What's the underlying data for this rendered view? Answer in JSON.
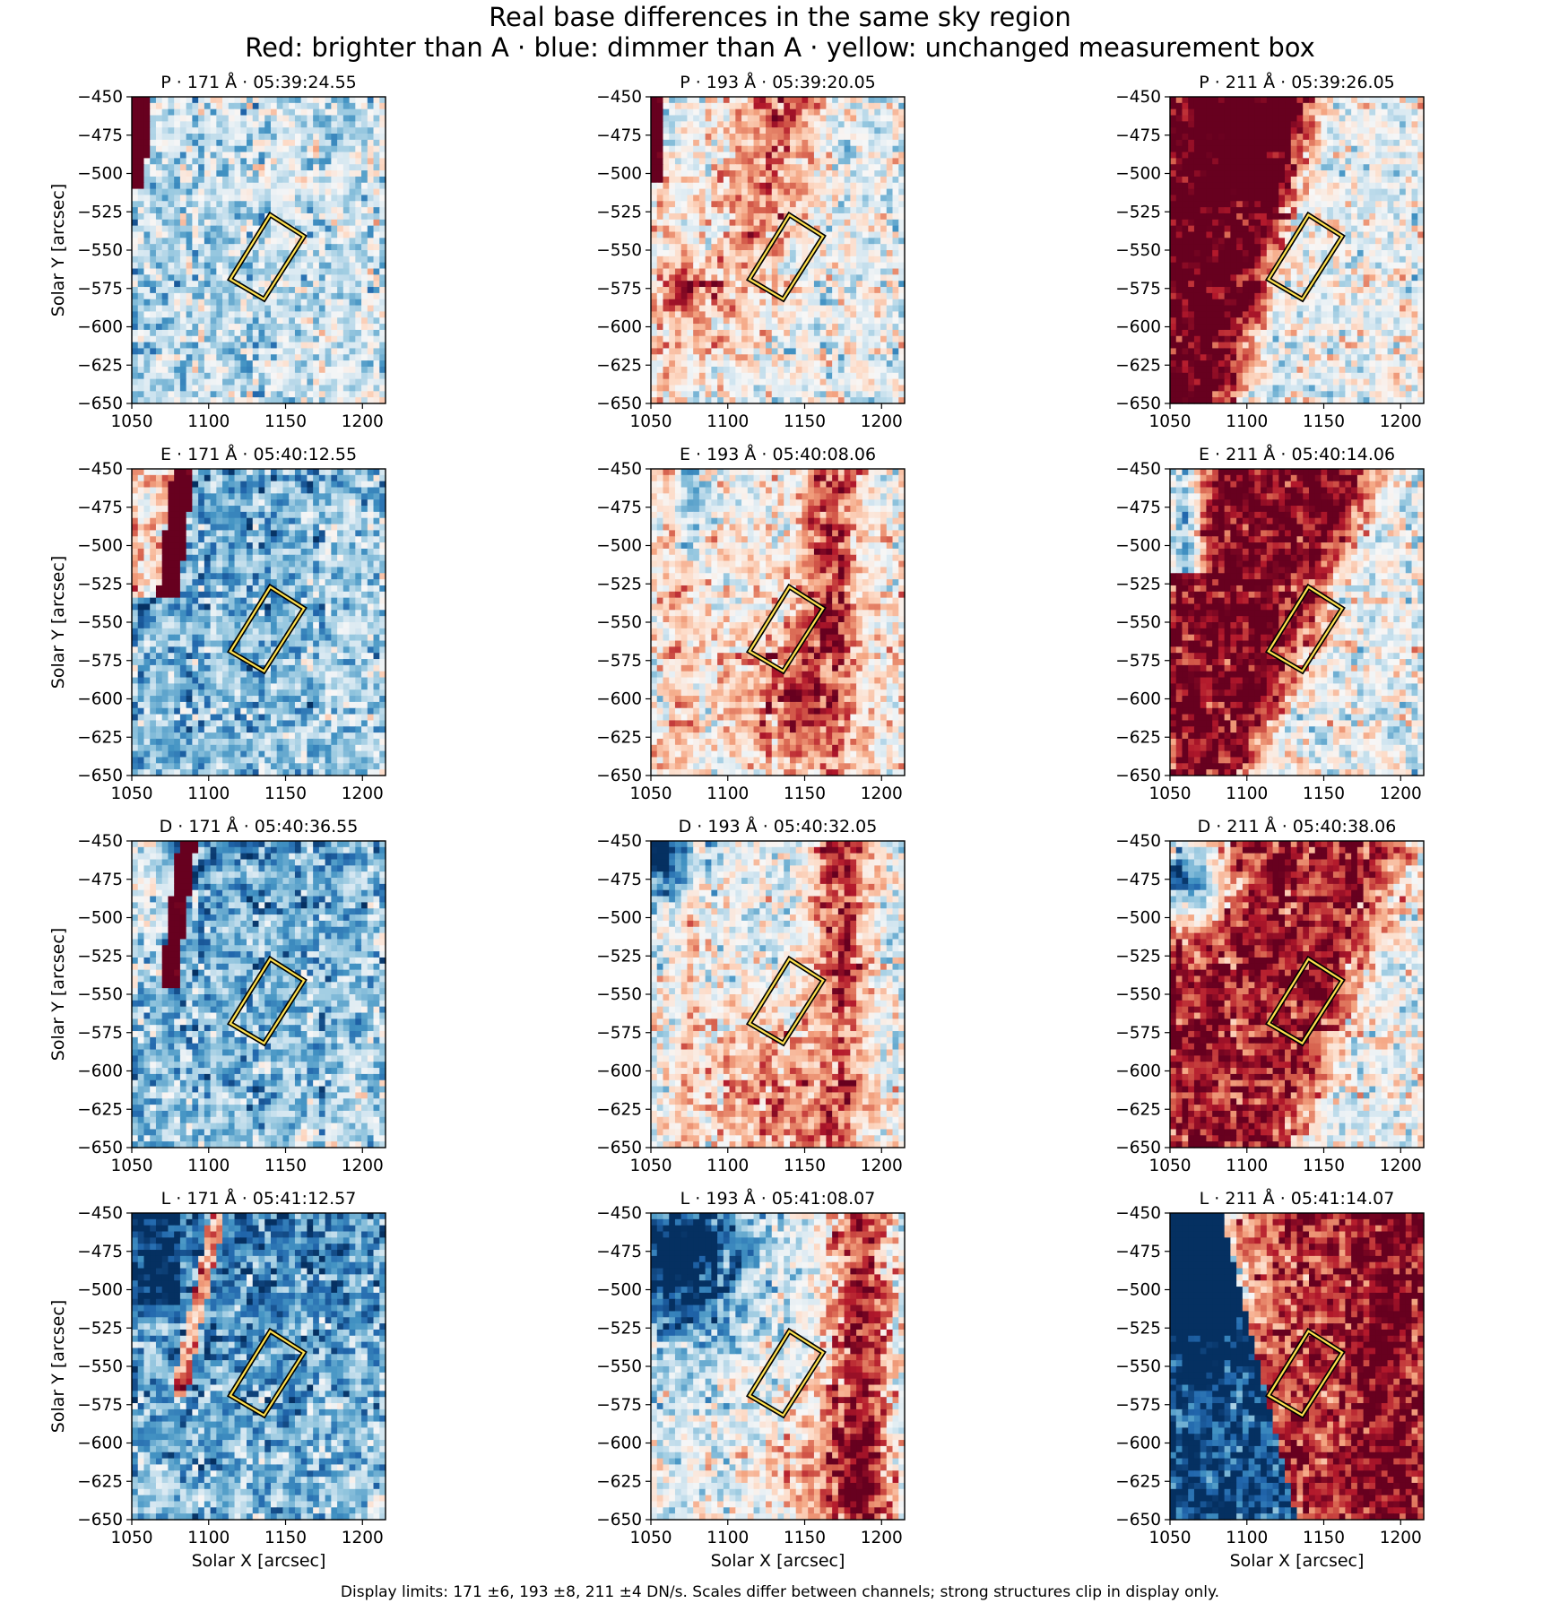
{
  "figure": {
    "title_line1": "Real base differences in the same sky region",
    "title_line2": "Red: brighter than A · blue: dimmer than A · yellow: unchanged measurement box",
    "footnote": "Display limits: 171 ±6, 193 ±8, 211 ±4 DN/s. Scales differ between channels; strong structures clip in display only."
  },
  "colors": {
    "red": "#67001f",
    "blue": "#053061",
    "box_outer": "#000000",
    "box_inner": "#ffe14d"
  },
  "chart_data": {
    "type": "heatmap",
    "colormap": "RdBu_r",
    "xlabel": "Solar X [arcsec]",
    "ylabel": "Solar Y [arcsec]",
    "xlim": [
      1050,
      1215
    ],
    "ylim": [
      -650,
      -450
    ],
    "xticks": [
      1050,
      1100,
      1150,
      1200
    ],
    "yticks": [
      -450,
      -475,
      -500,
      -525,
      -550,
      -575,
      -600,
      -625,
      -650
    ],
    "ytick_labels": [
      "−450",
      "−475",
      "−500",
      "−525",
      "−550",
      "−575",
      "−600",
      "−625",
      "−650"
    ],
    "display_limits": {
      "171": 6,
      "193": 8,
      "211": 4
    },
    "display_units": "DN/s",
    "measurement_box_corners": [
      [
        1140,
        -527
      ],
      [
        1162,
        -541
      ],
      [
        1136,
        -582
      ],
      [
        1114,
        -569
      ]
    ],
    "rows": [
      "P",
      "E",
      "D",
      "L"
    ],
    "columns": [
      "171 Å",
      "193 Å",
      "211 Å"
    ],
    "panels": [
      {
        "title": "P · 171 Å · 05:39:24.55",
        "row": 0,
        "col": 0,
        "pattern": "p171"
      },
      {
        "title": "P · 193 Å · 05:39:20.05",
        "row": 0,
        "col": 1,
        "pattern": "p193"
      },
      {
        "title": "P · 211 Å · 05:39:26.05",
        "row": 0,
        "col": 2,
        "pattern": "p211"
      },
      {
        "title": "E · 171 Å · 05:40:12.55",
        "row": 1,
        "col": 0,
        "pattern": "e171"
      },
      {
        "title": "E · 193 Å · 05:40:08.06",
        "row": 1,
        "col": 1,
        "pattern": "e193"
      },
      {
        "title": "E · 211 Å · 05:40:14.06",
        "row": 1,
        "col": 2,
        "pattern": "e211"
      },
      {
        "title": "D · 171 Å · 05:40:36.55",
        "row": 2,
        "col": 0,
        "pattern": "d171"
      },
      {
        "title": "D · 193 Å · 05:40:32.05",
        "row": 2,
        "col": 1,
        "pattern": "d193"
      },
      {
        "title": "D · 211 Å · 05:40:38.06",
        "row": 2,
        "col": 2,
        "pattern": "d211"
      },
      {
        "title": "L · 171 Å · 05:41:12.57",
        "row": 3,
        "col": 0,
        "pattern": "l171"
      },
      {
        "title": "L · 193 Å · 05:41:08.07",
        "row": 3,
        "col": 1,
        "pattern": "l193"
      },
      {
        "title": "L · 211 Å · 05:41:14.07",
        "row": 3,
        "col": 2,
        "pattern": "l211"
      }
    ]
  }
}
